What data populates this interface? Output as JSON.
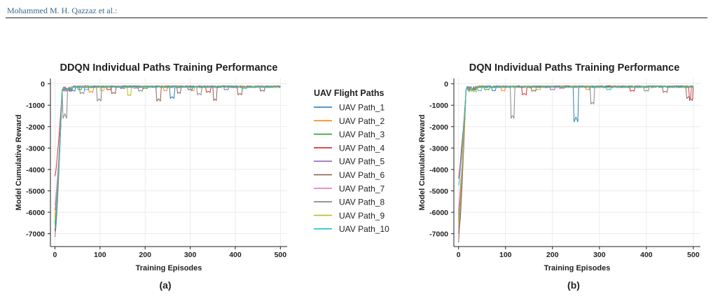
{
  "header": {
    "author": "Mohammed M. H. Qazzaz et al.:"
  },
  "legend": {
    "title": "UAV Flight Paths",
    "entries": [
      "UAV Path_1",
      "UAV Path_2",
      "UAV Path_3",
      "UAV Path_4",
      "UAV Path_5",
      "UAV Path_6",
      "UAV Path_7",
      "UAV Path_8",
      "UAV Path_9",
      "UAV Path_10"
    ]
  },
  "colors": [
    "#1f77b4",
    "#ff7f0e",
    "#2ca02c",
    "#d62728",
    "#9467bd",
    "#8c564b",
    "#e377c2",
    "#7f7f7f",
    "#bcbd22",
    "#17becf"
  ],
  "chart_data": [
    {
      "type": "line",
      "title": "DDQN Individual Paths Training Performance",
      "xlabel": "Training Episodes",
      "ylabel": "Model Cumulative Reward",
      "caption": "(a)",
      "xlim": [
        -10,
        515
      ],
      "ylim": [
        -7600,
        250
      ],
      "xticks": [
        0,
        100,
        200,
        300,
        400,
        500
      ],
      "yticks": [
        0,
        -1000,
        -2000,
        -3000,
        -4000,
        -5000,
        -6000,
        -7000
      ],
      "grid": true,
      "series": [
        {
          "name": "UAV Path_1",
          "start": -6900,
          "dips": [
            [
              40,
              -300
            ],
            [
              260,
              -600
            ],
            [
              300,
              -250
            ]
          ]
        },
        {
          "name": "UAV Path_2",
          "start": -6300,
          "dips": [
            [
              80,
              -350
            ],
            [
              245,
              -300
            ],
            [
              305,
              -300
            ]
          ]
        },
        {
          "name": "UAV Path_3",
          "start": -6600,
          "dips": [
            [
              55,
              -250
            ],
            [
              200,
              -200
            ]
          ]
        },
        {
          "name": "UAV Path_4",
          "start": -4400,
          "dips": [
            [
              120,
              -250
            ],
            [
              340,
              -350
            ]
          ]
        },
        {
          "name": "UAV Path_5",
          "start": -6000,
          "dips": [
            [
              150,
              -200
            ],
            [
              380,
              -250
            ]
          ]
        },
        {
          "name": "UAV Path_6",
          "start": -7000,
          "dips": [
            [
              130,
              -400
            ],
            [
              230,
              -700
            ],
            [
              275,
              -400
            ],
            [
              355,
              -700
            ],
            [
              410,
              -450
            ],
            [
              460,
              -300
            ]
          ]
        },
        {
          "name": "UAV Path_7",
          "start": -5800,
          "dips": [
            [
              180,
              -200
            ]
          ]
        },
        {
          "name": "UAV Path_8",
          "start": -7300,
          "dips": [
            [
              22,
              -1400
            ],
            [
              60,
              -400
            ],
            [
              98,
              -700
            ],
            [
              190,
              -300
            ],
            [
              320,
              -450
            ]
          ]
        },
        {
          "name": "UAV Path_9",
          "start": -6500,
          "dips": [
            [
              165,
              -500
            ],
            [
              105,
              -300
            ]
          ]
        },
        {
          "name": "UAV Path_10",
          "start": -6800,
          "dips": [
            [
              70,
              -250
            ],
            [
              420,
              -200
            ]
          ]
        }
      ]
    },
    {
      "type": "line",
      "title": "DQN Individual Paths Training Performance",
      "xlabel": "Training Episodes",
      "ylabel": "Model Cumulative Reward",
      "caption": "(b)",
      "xlim": [
        -10,
        515
      ],
      "ylim": [
        -7600,
        250
      ],
      "xticks": [
        0,
        100,
        200,
        300,
        400,
        500
      ],
      "yticks": [
        0,
        -1000,
        -2000,
        -3000,
        -4000,
        -5000,
        -6000,
        -7000
      ],
      "grid": true,
      "series": [
        {
          "name": "UAV Path_1",
          "start": -6200,
          "dips": [
            [
              250,
              -1550
            ],
            [
              75,
              -300
            ]
          ]
        },
        {
          "name": "UAV Path_2",
          "start": -6600,
          "dips": [
            [
              95,
              -300
            ],
            [
              275,
              -250
            ]
          ]
        },
        {
          "name": "UAV Path_3",
          "start": -5800,
          "dips": [
            [
              60,
              -250
            ]
          ]
        },
        {
          "name": "UAV Path_4",
          "start": -4300,
          "dips": [
            [
              140,
              -450
            ],
            [
              495,
              -700
            ],
            [
              370,
              -300
            ]
          ]
        },
        {
          "name": "UAV Path_5",
          "start": -6000,
          "dips": [
            [
              200,
              -250
            ]
          ]
        },
        {
          "name": "UAV Path_6",
          "start": -7300,
          "dips": [
            [
              160,
              -300
            ],
            [
              440,
              -350
            ],
            [
              490,
              -600
            ]
          ]
        },
        {
          "name": "UAV Path_7",
          "start": -5900,
          "dips": [
            [
              220,
              -200
            ]
          ]
        },
        {
          "name": "UAV Path_8",
          "start": -6900,
          "dips": [
            [
              115,
              -1450
            ],
            [
              285,
              -850
            ],
            [
              400,
              -300
            ]
          ]
        },
        {
          "name": "UAV Path_9",
          "start": -6400,
          "dips": [
            [
              35,
              -350
            ],
            [
              170,
              -250
            ]
          ]
        },
        {
          "name": "UAV Path_10",
          "start": -4700,
          "dips": [
            [
              45,
              -300
            ],
            [
              320,
              -250
            ]
          ]
        }
      ]
    }
  ]
}
